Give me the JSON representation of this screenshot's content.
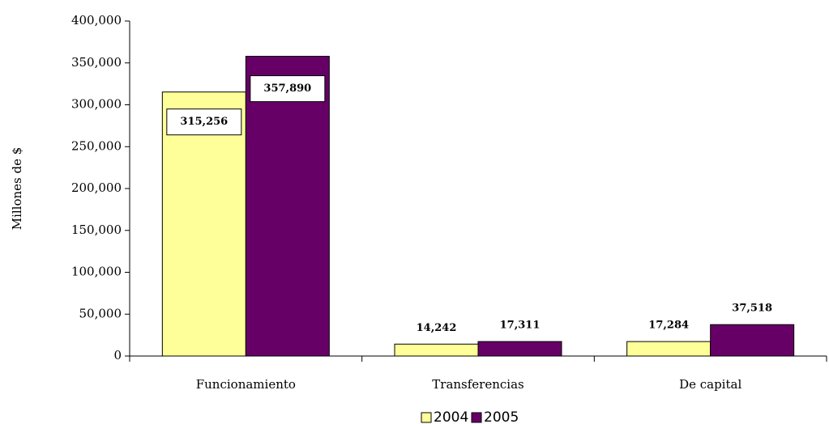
{
  "chart_data": {
    "type": "bar",
    "y_axis_label": "Millones de $",
    "categories": [
      "Funcionamiento",
      "Transferencias",
      "De capital"
    ],
    "series": [
      {
        "name": "2004",
        "color": "#ffff99",
        "values": [
          315256,
          14242,
          17284
        ],
        "value_labels": [
          "315,256",
          "14,242",
          "17,284"
        ]
      },
      {
        "name": "2005",
        "color": "#660066",
        "values": [
          357890,
          17311,
          37518
        ],
        "value_labels": [
          "357,890",
          "17,311",
          "37,518"
        ]
      }
    ],
    "ylim": [
      0,
      400000
    ],
    "yticks": [
      0,
      {
        "value": 50000,
        "label": "50,000"
      },
      {
        "value": 100000,
        "label": "100,000"
      },
      {
        "value": 150000,
        "label": "150,000"
      },
      {
        "value": 200000,
        "label": "200,000"
      },
      {
        "value": 250000,
        "label": "250,000"
      },
      {
        "value": 300000,
        "label": "300,000"
      },
      {
        "value": 350000,
        "label": "350,000"
      },
      {
        "value": 400000,
        "label": "400,000"
      }
    ],
    "legend": "bottom"
  }
}
